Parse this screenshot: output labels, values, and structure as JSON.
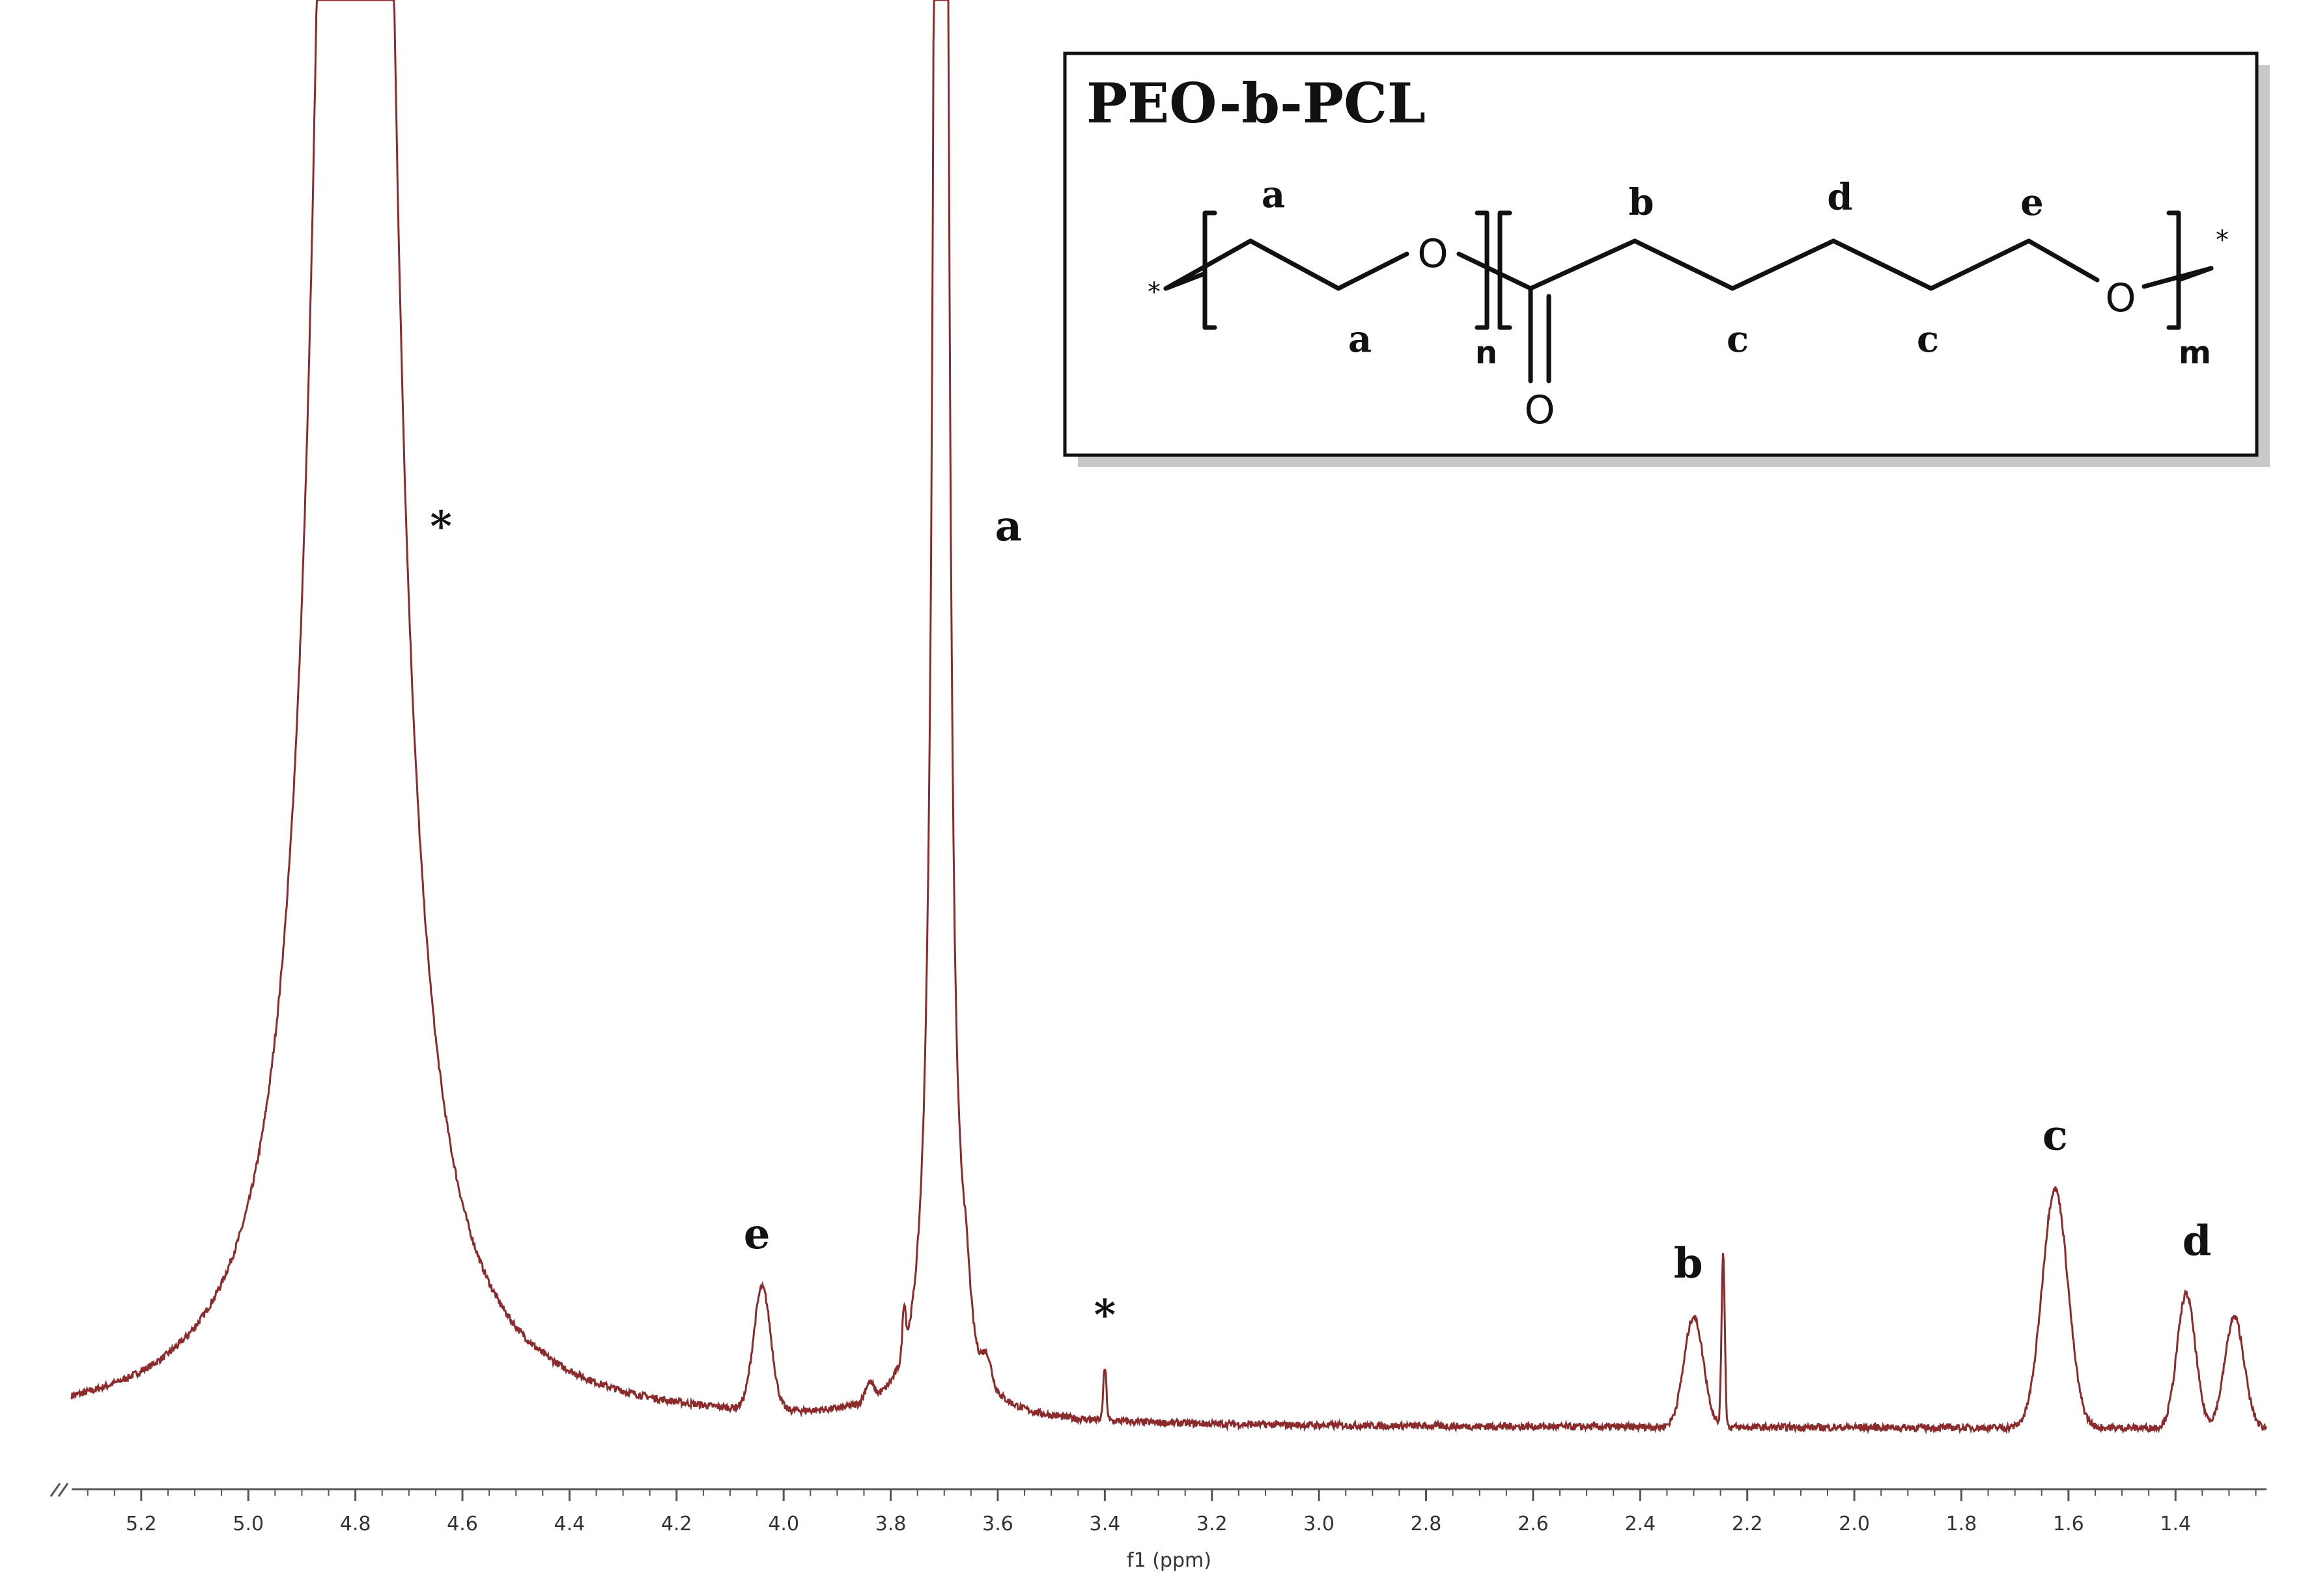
{
  "chart_data": {
    "type": "line",
    "xlabel": "f1 (ppm)",
    "x_reversed": true,
    "xlim": [
      5.33,
      1.23
    ],
    "ylim": [
      0,
      1
    ],
    "grid": false,
    "line_color": "#8b2b2b",
    "x_ticks": [
      "5.2",
      "5.0",
      "4.8",
      "4.6",
      "4.4",
      "4.2",
      "4.0",
      "3.8",
      "3.6",
      "3.4",
      "3.2",
      "3.0",
      "2.8",
      "2.6",
      "2.4",
      "2.2",
      "2.0",
      "1.8",
      "1.6",
      "1.4"
    ],
    "baseline": 0.02,
    "peaks": [
      {
        "center": 4.8,
        "height": 6.5,
        "width": 0.035,
        "kind": "lorentz",
        "label": "*"
      },
      {
        "center": 3.706,
        "height": 6.0,
        "width": 0.007,
        "kind": "lorentz",
        "label": "a"
      },
      {
        "center": 4.04,
        "height": 0.105,
        "width": 0.016,
        "kind": "gauss",
        "label": "e"
      },
      {
        "center": 3.4,
        "height": 0.045,
        "width": 0.003,
        "kind": "gauss",
        "label": "*"
      },
      {
        "center": 2.3,
        "height": 0.095,
        "width": 0.018,
        "kind": "gauss",
        "label": "b"
      },
      {
        "center": 2.245,
        "height": 0.15,
        "width": 0.003,
        "kind": "gauss",
        "label": ""
      },
      {
        "center": 1.625,
        "height": 0.205,
        "width": 0.024,
        "kind": "gauss",
        "label": "c"
      },
      {
        "center": 1.38,
        "height": 0.115,
        "width": 0.017,
        "kind": "gauss",
        "label": "d"
      },
      {
        "center": 1.29,
        "height": 0.095,
        "width": 0.018,
        "kind": "gauss",
        "label": ""
      },
      {
        "center": 3.84,
        "height": 0.015,
        "width": 0.008,
        "kind": "gauss",
        "label": ""
      },
      {
        "center": 3.775,
        "height": 0.04,
        "width": 0.003,
        "kind": "gauss",
        "label": ""
      },
      {
        "center": 3.66,
        "height": 0.04,
        "width": 0.008,
        "kind": "gauss",
        "label": ""
      },
      {
        "center": 3.62,
        "height": 0.02,
        "width": 0.008,
        "kind": "gauss",
        "label": ""
      }
    ],
    "peak_labels": [
      {
        "text": "*",
        "ppm": 4.64
      },
      {
        "text": "a",
        "ppm": 3.58
      },
      {
        "text": "e",
        "ppm": 4.05
      },
      {
        "text": "*",
        "ppm": 3.4
      },
      {
        "text": "b",
        "ppm": 2.31
      },
      {
        "text": "c",
        "ppm": 1.625
      },
      {
        "text": "d",
        "ppm": 1.36
      }
    ]
  },
  "structure": {
    "title": "PEO-b-PCL",
    "oxygen": "O",
    "repeat_n": "n",
    "repeat_m": "m",
    "end_group": "*",
    "carbon_labels": [
      "a",
      "a",
      "b",
      "c",
      "d",
      "c",
      "e"
    ]
  }
}
